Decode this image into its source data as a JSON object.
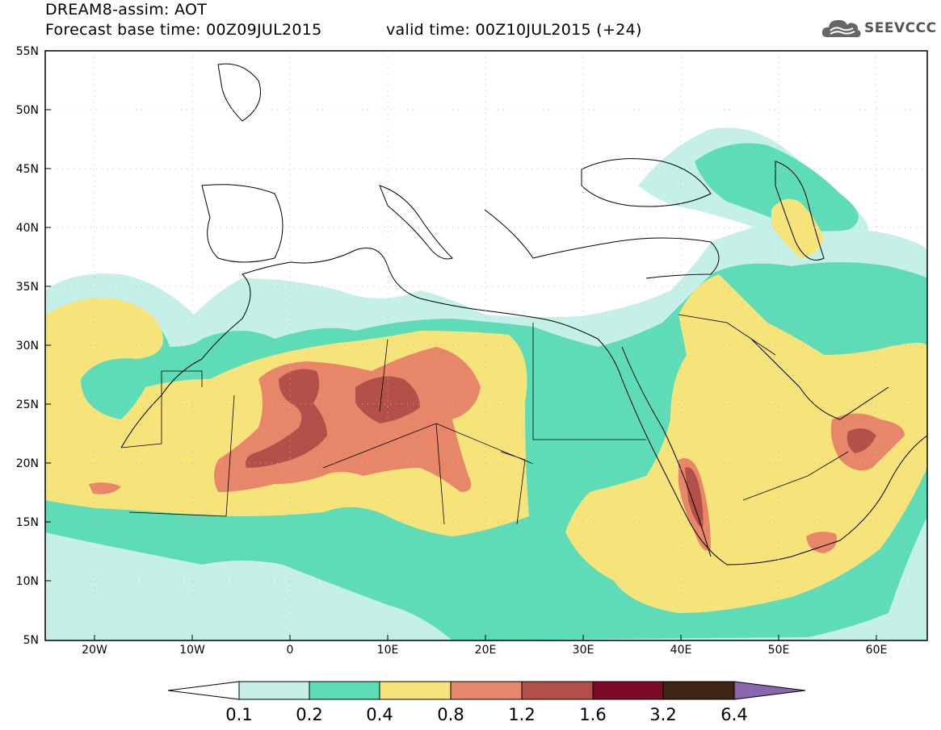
{
  "header": {
    "line1": "DREAM8-assim: AOT",
    "line2": "Forecast base time: 00Z09JUL2015",
    "valid": "valid time: 00Z10JUL2015 (+24)",
    "logo_icon": "cloud-icon",
    "logo_text": "SEEVCCC"
  },
  "map": {
    "lat_labels": [
      "55N",
      "50N",
      "45N",
      "40N",
      "35N",
      "30N",
      "25N",
      "20N",
      "15N",
      "10N",
      "5N"
    ],
    "lon_labels": [
      "20W",
      "10W",
      "0",
      "10E",
      "20E",
      "30E",
      "40E",
      "50E",
      "60E"
    ]
  },
  "colorbar": {
    "labels": [
      "0.1",
      "0.2",
      "0.4",
      "0.8",
      "1.2",
      "1.6",
      "3.2",
      "6.4"
    ],
    "colors": [
      "#ffffff",
      "#c4f0e8",
      "#5edcb8",
      "#f6e47a",
      "#e8866a",
      "#b4504a",
      "#7c0c26",
      "#3f2514",
      "#8a66ae"
    ]
  }
}
